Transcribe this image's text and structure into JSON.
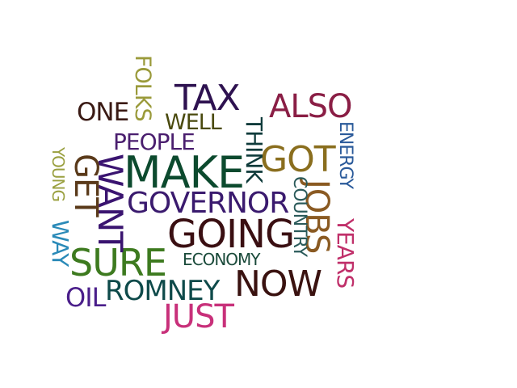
{
  "words": [
    {
      "text": "MAKE",
      "color": "#0c4a2e",
      "rotated": false
    },
    {
      "text": "GOING",
      "color": "#3a0f12",
      "rotated": false
    },
    {
      "text": "SURE",
      "color": "#3d7a1f",
      "rotated": false
    },
    {
      "text": "NOW",
      "color": "#3a1210",
      "rotated": false
    },
    {
      "text": "TAX",
      "color": "#2e1250",
      "rotated": false
    },
    {
      "text": "GOT",
      "color": "#8a6e1e",
      "rotated": false
    },
    {
      "text": "ALSO",
      "color": "#8a1e45",
      "rotated": false
    },
    {
      "text": "JUST",
      "color": "#c8307a",
      "rotated": false
    },
    {
      "text": "GOVERNOR",
      "color": "#3a1a6e",
      "rotated": false
    },
    {
      "text": "ROMNEY",
      "color": "#0e4a4a",
      "rotated": false
    },
    {
      "text": "ONE",
      "color": "#3a1a14",
      "rotated": false
    },
    {
      "text": "PEOPLE",
      "color": "#4a1e6e",
      "rotated": false
    },
    {
      "text": "WELL",
      "color": "#4a4a0e",
      "rotated": false
    },
    {
      "text": "OIL",
      "color": "#4a1e8a",
      "rotated": false
    },
    {
      "text": "ECONOMY",
      "color": "#1a4a3a",
      "rotated": false
    },
    {
      "text": "WANT",
      "color": "#3a1470",
      "rotated": true
    },
    {
      "text": "GET",
      "color": "#5a3a1a",
      "rotated": true
    },
    {
      "text": "JOBS",
      "color": "#8a5a22",
      "rotated": true
    },
    {
      "text": "THINK",
      "color": "#0e3a3a",
      "rotated": true
    },
    {
      "text": "FOLKS",
      "color": "#9a9a3a",
      "rotated": true
    },
    {
      "text": "YEARS",
      "color": "#c0306a",
      "rotated": true
    },
    {
      "text": "COUNTRY",
      "color": "#2a5a5a",
      "rotated": true
    },
    {
      "text": "ENERGY",
      "color": "#2a5a9a",
      "rotated": true
    },
    {
      "text": "WAY",
      "color": "#2a8ab8",
      "rotated": true
    },
    {
      "text": "YOUNG",
      "color": "#9aa040",
      "rotated": true
    }
  ]
}
